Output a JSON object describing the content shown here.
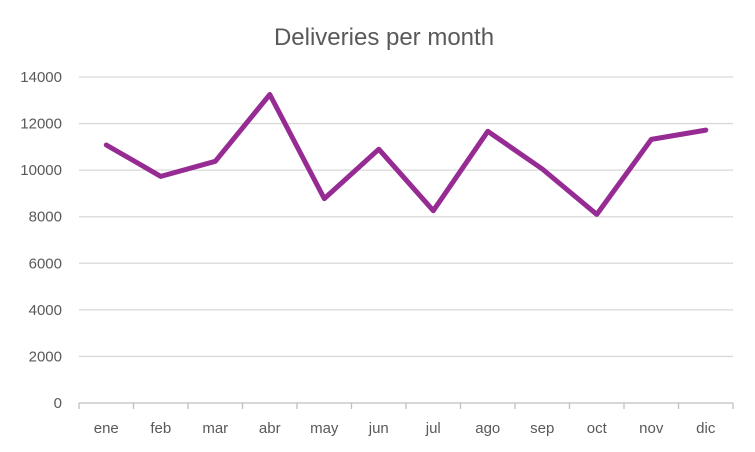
{
  "chart_data": {
    "type": "line",
    "title": "Deliveries per month",
    "xlabel": "",
    "ylabel": "",
    "categories": [
      "ene",
      "feb",
      "mar",
      "abr",
      "may",
      "jun",
      "jul",
      "ago",
      "sep",
      "oct",
      "nov",
      "dic"
    ],
    "series": [
      {
        "values": [
          11080,
          9730,
          10380,
          13250,
          8780,
          10900,
          8260,
          11670,
          10050,
          8100,
          11320,
          11720
        ]
      }
    ],
    "ylim": [
      0,
      14000
    ],
    "yticks": [
      "0",
      "2000",
      "4000",
      "6000",
      "8000",
      "10000",
      "12000",
      "14000"
    ],
    "grid": true,
    "legend": "none",
    "colors": {
      "series": "#962c93",
      "grid": "#d9d9d9",
      "text": "#595959"
    }
  }
}
